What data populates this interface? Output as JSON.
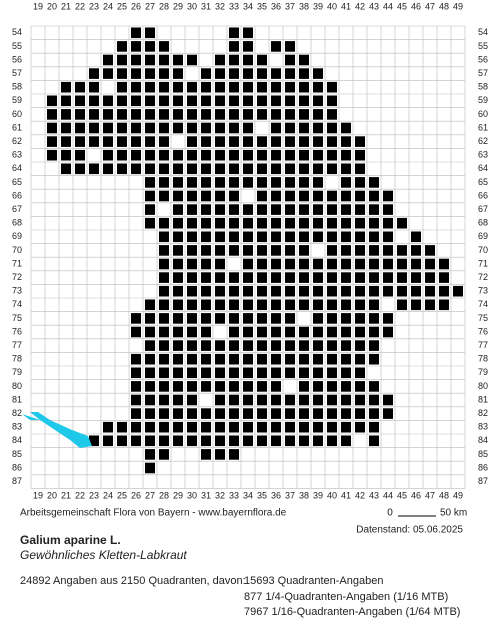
{
  "map": {
    "columns": [
      19,
      20,
      21,
      22,
      23,
      24,
      25,
      26,
      27,
      28,
      29,
      30,
      31,
      32,
      33,
      34,
      35,
      36,
      37,
      38,
      39,
      40,
      41,
      42,
      43,
      44,
      45,
      46,
      47,
      48,
      49
    ],
    "rows": [
      54,
      55,
      56,
      57,
      58,
      59,
      60,
      61,
      62,
      63,
      64,
      65,
      66,
      67,
      68,
      69,
      70,
      71,
      72,
      73,
      74,
      75,
      76,
      77,
      78,
      79,
      80,
      81,
      82,
      83,
      84,
      85,
      86,
      87
    ],
    "credit": "Arbeitsgemeinschaft Flora von Bayern - www.bayernflora.de",
    "scale_start": "0",
    "scale_end": "50 km",
    "date": "Datenstand: 05.06.2025"
  },
  "species": {
    "name": "Galium aparine L.",
    "common_name": "Gewöhnliches Kletten-Labkraut"
  },
  "stats": {
    "summary": "24892 Angaben aus 2150 Quadranten, davon:",
    "lines": [
      "15693 Quadranten-Angaben",
      "877 1/4-Quadranten-Angaben (1/16 MTB)",
      "7967 1/16-Quadranten-Angaben (1/64 MTB)"
    ]
  }
}
